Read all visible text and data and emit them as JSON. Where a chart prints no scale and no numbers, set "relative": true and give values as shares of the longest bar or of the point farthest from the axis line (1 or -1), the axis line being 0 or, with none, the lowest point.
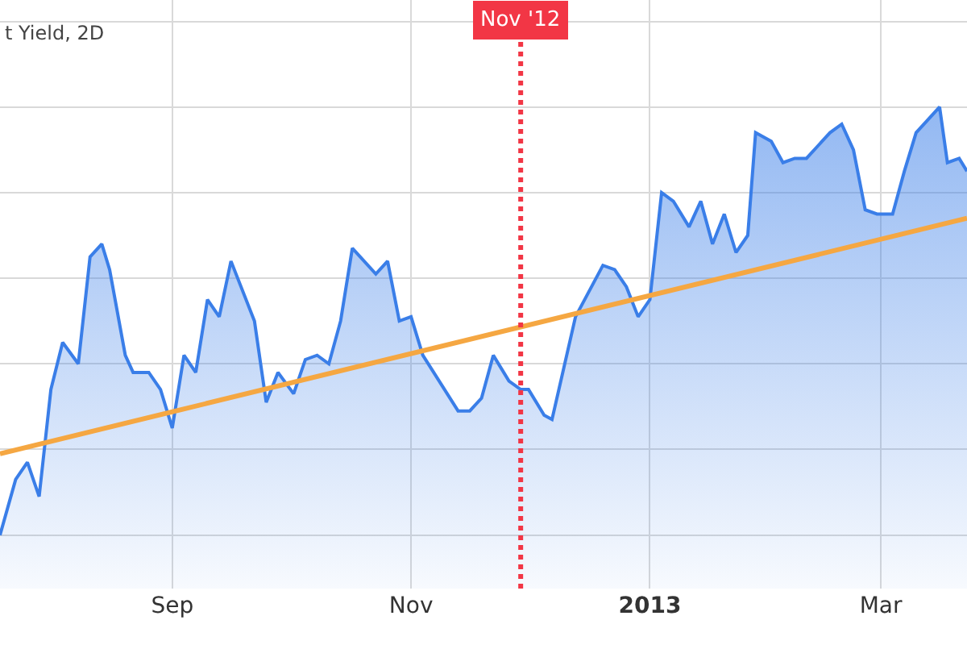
{
  "chart_data": {
    "type": "area",
    "title": "t Yield, 2D",
    "relative": true,
    "grid": true,
    "xlim": [
      "2012-07-19",
      "2013-03-23"
    ],
    "xticks": [
      {
        "value": "2012-09-01",
        "label": "Sep"
      },
      {
        "value": "2012-11-01",
        "label": "Nov"
      },
      {
        "value": "2013-01-01",
        "label": "2013"
      },
      {
        "value": "2013-03-01",
        "label": "Mar"
      }
    ],
    "series": [
      {
        "color": "#3a7ee8",
        "x": [
          "2012-07-19",
          "2012-07-23",
          "2012-07-26",
          "2012-07-29",
          "2012-08-01",
          "2012-08-04",
          "2012-08-08",
          "2012-08-11",
          "2012-08-14",
          "2012-08-16",
          "2012-08-20",
          "2012-08-22",
          "2012-08-26",
          "2012-08-29",
          "2012-09-01",
          "2012-09-04",
          "2012-09-07",
          "2012-09-10",
          "2012-09-13",
          "2012-09-16",
          "2012-09-22",
          "2012-09-25",
          "2012-09-28",
          "2012-10-02",
          "2012-10-05",
          "2012-10-08",
          "2012-10-11",
          "2012-10-14",
          "2012-10-17",
          "2012-10-23",
          "2012-10-26",
          "2012-10-29",
          "2012-11-01",
          "2012-11-04",
          "2012-11-13",
          "2012-11-16",
          "2012-11-19",
          "2012-11-22",
          "2012-11-26",
          "2012-11-29",
          "2012-12-01",
          "2012-12-05",
          "2012-12-07",
          "2012-12-13",
          "2012-12-20",
          "2012-12-23",
          "2012-12-26",
          "2012-12-29",
          "2013-01-01",
          "2013-01-04",
          "2013-01-07",
          "2013-01-11",
          "2013-01-14",
          "2013-01-17",
          "2013-01-20",
          "2013-01-23",
          "2013-01-26",
          "2013-01-28",
          "2013-02-01",
          "2013-02-04",
          "2013-02-07",
          "2013-02-10",
          "2013-02-13",
          "2013-02-16",
          "2013-02-19",
          "2013-02-22",
          "2013-02-25",
          "2013-02-28",
          "2013-03-04",
          "2013-03-07",
          "2013-03-10",
          "2013-03-13",
          "2013-03-16",
          "2013-03-18",
          "2013-03-21",
          "2013-03-23"
        ],
        "values": [
          0,
          0.13,
          0.17,
          0.09,
          0.34,
          0.45,
          0.4,
          0.65,
          0.68,
          0.62,
          0.42,
          0.38,
          0.38,
          0.34,
          0.25,
          0.42,
          0.38,
          0.55,
          0.51,
          0.64,
          0.5,
          0.31,
          0.38,
          0.33,
          0.41,
          0.42,
          0.4,
          0.5,
          0.67,
          0.61,
          0.64,
          0.5,
          0.51,
          0.42,
          0.29,
          0.29,
          0.32,
          0.42,
          0.36,
          0.34,
          0.34,
          0.28,
          0.27,
          0.51,
          0.63,
          0.62,
          0.58,
          0.51,
          0.55,
          0.8,
          0.78,
          0.72,
          0.78,
          0.68,
          0.75,
          0.66,
          0.7,
          0.94,
          0.92,
          0.87,
          0.88,
          0.88,
          0.91,
          0.94,
          0.96,
          0.9,
          0.76,
          0.75,
          0.75,
          0.85,
          0.94,
          0.97,
          1.0,
          0.87,
          0.88,
          0.85
        ]
      },
      {
        "type": "line",
        "color": "#f5a742",
        "x": [
          "2012-07-19",
          "2013-03-23"
        ],
        "values": [
          0.19,
          0.74
        ]
      }
    ],
    "ref_lines": [
      {
        "axis": "x",
        "value": "2012-11-29",
        "label": "Nov '12",
        "color": "#f23645",
        "line_style": "dotted"
      }
    ]
  }
}
